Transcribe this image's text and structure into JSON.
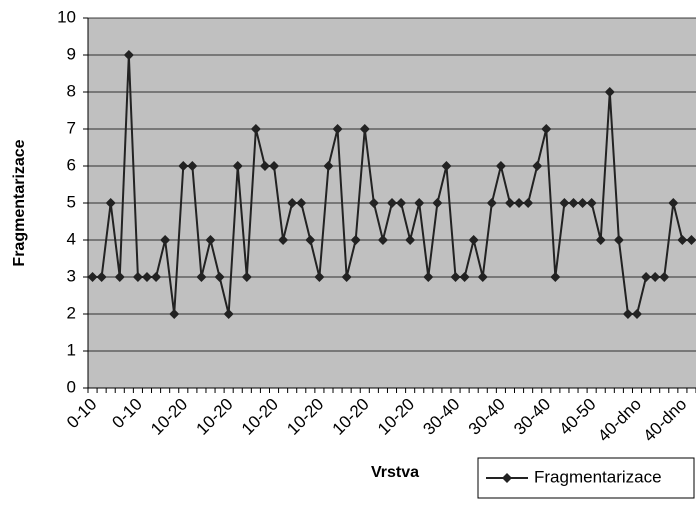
{
  "chart_data": {
    "type": "line",
    "x_label": "Vrstva",
    "y_label": "Fragmentarizace",
    "categories": [
      "0-10",
      null,
      null,
      null,
      null,
      "0-10",
      null,
      null,
      null,
      null,
      "10-20",
      null,
      null,
      null,
      null,
      "10-20",
      null,
      null,
      null,
      null,
      "10-20",
      null,
      null,
      null,
      null,
      "10-20",
      null,
      null,
      null,
      null,
      "10-20",
      null,
      null,
      null,
      null,
      "10-20",
      null,
      null,
      null,
      null,
      "30-40",
      null,
      null,
      null,
      null,
      "30-40",
      null,
      null,
      null,
      null,
      "30-40",
      null,
      null,
      null,
      null,
      "40-50",
      null,
      null,
      null,
      null,
      "40-dno",
      null,
      null,
      null,
      null,
      "40-dno",
      null
    ],
    "series": [
      {
        "name": "Fragmentarizace",
        "color": "#222222",
        "values": [
          3,
          3,
          5,
          3,
          9,
          3,
          3,
          3,
          4,
          2,
          6,
          6,
          3,
          4,
          3,
          2,
          6,
          3,
          7,
          6,
          6,
          4,
          5,
          5,
          4,
          3,
          6,
          7,
          3,
          4,
          7,
          5,
          4,
          5,
          5,
          4,
          5,
          3,
          5,
          6,
          3,
          3,
          4,
          3,
          5,
          6,
          5,
          5,
          5,
          6,
          7,
          3,
          5,
          5,
          5,
          5,
          4,
          8,
          4,
          2,
          2,
          3,
          3,
          3,
          5,
          4,
          4
        ]
      }
    ],
    "ylim": [
      0,
      10
    ],
    "yticks": [
      0,
      1,
      2,
      3,
      4,
      5,
      6,
      7,
      8,
      9,
      10
    ],
    "grid": true,
    "legend": "bottom-right"
  }
}
